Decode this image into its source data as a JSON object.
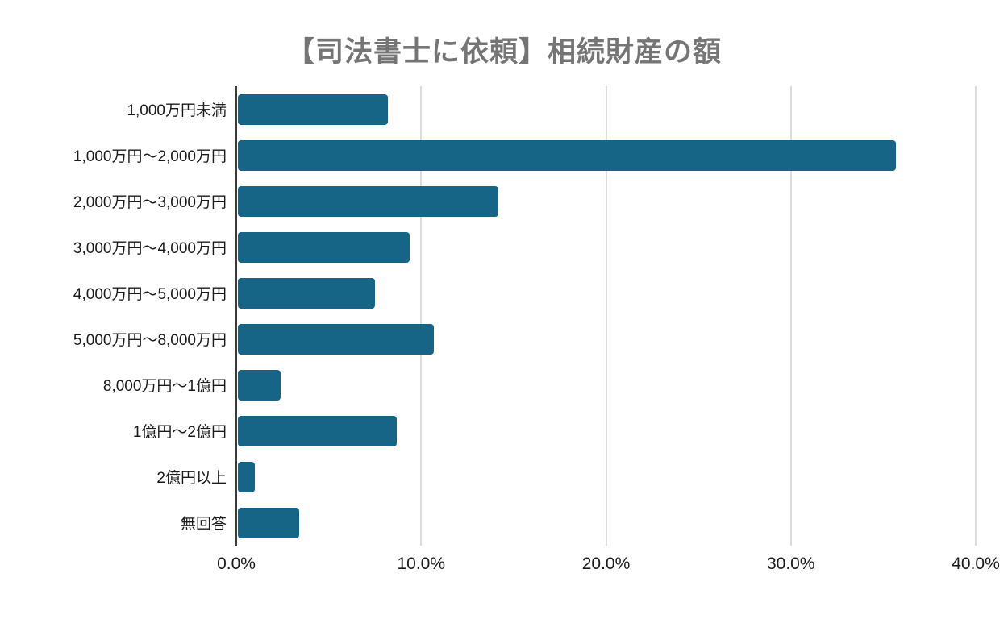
{
  "chart_data": {
    "type": "bar",
    "orientation": "horizontal",
    "title": "【司法書士に依頼】相続財産の額",
    "categories": [
      "1,000万円未満",
      "1,000万円〜2,000万円",
      "2,000万円〜3,000万円",
      "3,000万円〜4,000万円",
      "4,000万円〜5,000万円",
      "5,000万円〜8,000万円",
      "8,000万円〜1億円",
      "1億円〜2億円",
      "2億円以上",
      "無回答"
    ],
    "values": [
      8.1,
      35.6,
      14.1,
      9.3,
      7.4,
      10.6,
      2.3,
      8.6,
      0.9,
      3.3
    ],
    "value_unit": "%",
    "xlabel": "",
    "ylabel": "",
    "xlim": [
      0,
      40
    ],
    "x_ticks": [
      "0.0%",
      "10.0%",
      "20.0%",
      "30.0%",
      "40.0%"
    ],
    "grid": "vertical-gridlines-only",
    "legend": "none",
    "colors": {
      "bar": "#176586",
      "title": "#757575",
      "label": "#1a1a1a",
      "gridline": "#dcdcdc",
      "axis": "#3b3b3b",
      "background": "#ffffff"
    }
  }
}
